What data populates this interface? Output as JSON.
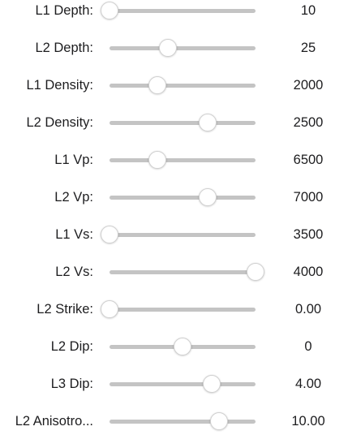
{
  "controls": [
    {
      "label": "L1 Depth:",
      "value": "10",
      "position": 0.0
    },
    {
      "label": "L2 Depth:",
      "value": "25",
      "position": 0.4
    },
    {
      "label": "L1 Density:",
      "value": "2000",
      "position": 0.33
    },
    {
      "label": "L2 Density:",
      "value": "2500",
      "position": 0.67
    },
    {
      "label": "L1 Vp:",
      "value": "6500",
      "position": 0.33
    },
    {
      "label": "L2 Vp:",
      "value": "7000",
      "position": 0.67
    },
    {
      "label": "L1 Vs:",
      "value": "3500",
      "position": 0.0
    },
    {
      "label": "L2 Vs:",
      "value": "4000",
      "position": 1.0
    },
    {
      "label": "L2 Strike:",
      "value": "0.00",
      "position": 0.0
    },
    {
      "label": "L2 Dip:",
      "value": "0",
      "position": 0.5
    },
    {
      "label": "L3 Dip:",
      "value": "4.00",
      "position": 0.7
    },
    {
      "label": "L2 Anisotro...",
      "value": "10.00",
      "position": 0.75
    }
  ]
}
